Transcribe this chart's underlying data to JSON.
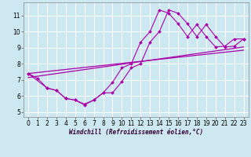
{
  "xlabel": "Windchill (Refroidissement éolien,°C)",
  "bg_color": "#cde8f0",
  "grid_color": "#ffffff",
  "line_color": "#aa00aa",
  "xlim": [
    -0.5,
    23.5
  ],
  "ylim": [
    4.7,
    11.8
  ],
  "yticks": [
    5,
    6,
    7,
    8,
    9,
    10,
    11
  ],
  "xticks": [
    0,
    1,
    2,
    3,
    4,
    5,
    6,
    7,
    8,
    9,
    10,
    11,
    12,
    13,
    14,
    15,
    16,
    17,
    18,
    19,
    20,
    21,
    22,
    23
  ],
  "series1_x": [
    0,
    1,
    2,
    3,
    4,
    5,
    6,
    7,
    8,
    9,
    10,
    11,
    12,
    13,
    14,
    15,
    16,
    17,
    18,
    19,
    20,
    21,
    22,
    23
  ],
  "series1_y": [
    7.4,
    7.1,
    6.5,
    6.35,
    5.85,
    5.75,
    5.45,
    5.75,
    6.2,
    6.2,
    6.9,
    7.75,
    8.0,
    9.35,
    10.0,
    11.35,
    11.15,
    10.5,
    9.7,
    10.45,
    9.7,
    9.05,
    9.1,
    9.55
  ],
  "series2_x": [
    0,
    2,
    3,
    4,
    5,
    6,
    7,
    8,
    9,
    10,
    11,
    12,
    13,
    14,
    15,
    16,
    17,
    18,
    19,
    20,
    21,
    22,
    23
  ],
  "series2_y": [
    7.4,
    6.5,
    6.35,
    5.85,
    5.75,
    5.5,
    5.75,
    6.2,
    6.85,
    7.75,
    8.0,
    9.35,
    10.0,
    11.35,
    11.15,
    10.5,
    9.7,
    10.45,
    9.7,
    9.05,
    9.1,
    9.55,
    9.55
  ],
  "trend1_x": [
    0,
    23
  ],
  "trend1_y": [
    7.4,
    8.85
  ],
  "trend2_x": [
    0,
    23
  ],
  "trend2_y": [
    7.15,
    9.05
  ],
  "xlabel_fontsize": 5.5,
  "tick_fontsize": 5.5
}
